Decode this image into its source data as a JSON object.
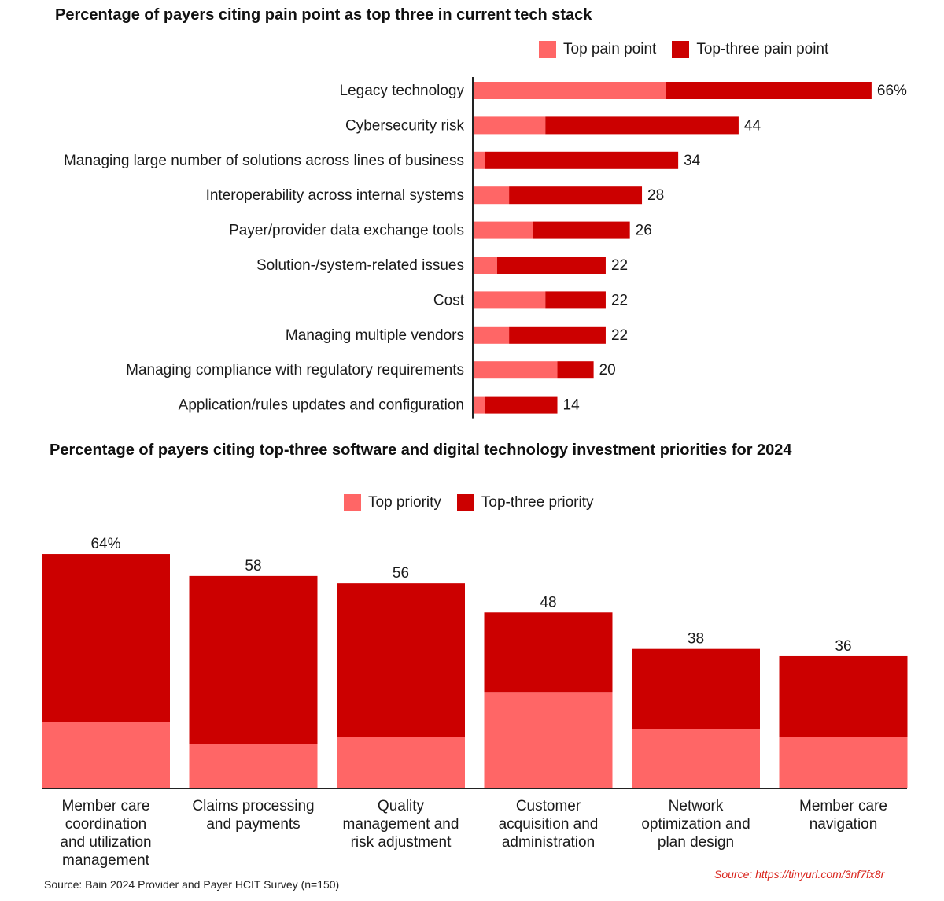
{
  "colors": {
    "top": "#ff6666",
    "topthree": "#cc0000",
    "axis": "#222222"
  },
  "chart_data": [
    {
      "type": "bar",
      "orientation": "horizontal",
      "stacked": true,
      "title": "Percentage of payers citing pain point as top three in current tech stack",
      "legend": [
        "Top pain point",
        "Top-three pain point"
      ],
      "legend_position": "top-right",
      "categories": [
        "Legacy technology",
        "Cybersecurity risk",
        "Managing large number of solutions across lines of business",
        "Interoperability across internal systems",
        "Payer/provider data exchange tools",
        "Solution-/system-related issues",
        "Cost",
        "Managing multiple vendors",
        "Managing compliance with regulatory requirements",
        "Application/rules updates and configuration"
      ],
      "top_values": [
        32,
        12,
        2,
        6,
        10,
        4,
        12,
        6,
        14,
        2
      ],
      "total_values": [
        66,
        44,
        34,
        28,
        26,
        22,
        22,
        22,
        20,
        14
      ],
      "value_labels": [
        "66%",
        "44",
        "34",
        "28",
        "26",
        "22",
        "22",
        "22",
        "20",
        "14"
      ]
    },
    {
      "type": "bar",
      "orientation": "vertical",
      "stacked": true,
      "title": "Percentage of payers citing top-three software and digital technology investment priorities for 2024",
      "legend": [
        "Top priority",
        "Top-three priority"
      ],
      "legend_position": "top-center",
      "categories": [
        [
          "Member care",
          "coordination",
          "and utilization",
          "management"
        ],
        [
          "Claims processing",
          "and payments"
        ],
        [
          "Quality",
          "management and",
          "risk adjustment"
        ],
        [
          "Customer",
          "acquisition and",
          "administration"
        ],
        [
          "Network",
          "optimization and",
          "plan design"
        ],
        [
          "Member care",
          "navigation"
        ]
      ],
      "top_values": [
        18,
        12,
        14,
        26,
        16,
        14
      ],
      "total_values": [
        64,
        58,
        56,
        48,
        38,
        36
      ],
      "value_labels": [
        "64%",
        "58",
        "56",
        "48",
        "38",
        "36"
      ]
    }
  ],
  "footer": {
    "source": "Source: Bain 2024 Provider and Payer HCIT Survey (n=150)",
    "url": "Source: https://tinyurl.com/3nf7fx8r"
  }
}
